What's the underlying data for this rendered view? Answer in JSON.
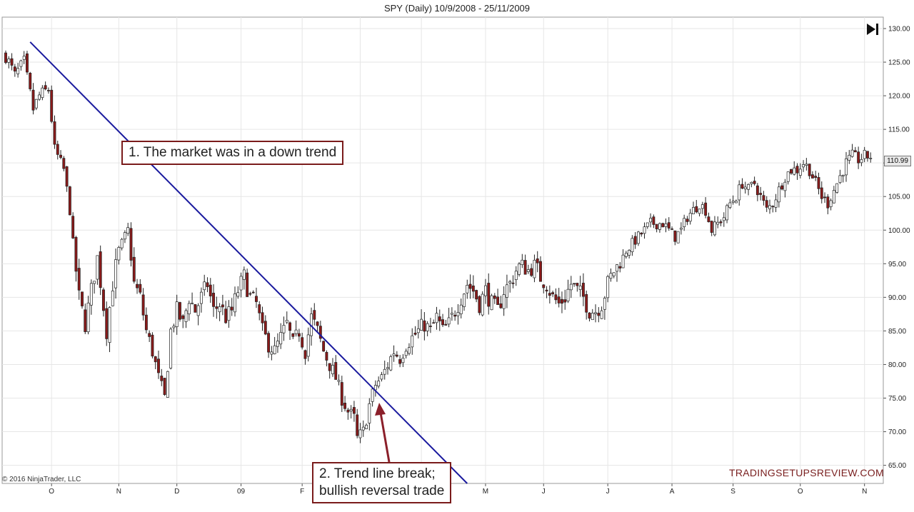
{
  "chart_data": {
    "type": "candlestick",
    "title": "SPY (Daily)  10/9/2008 - 25/11/2009",
    "y_ticks": [
      65,
      70,
      75,
      80,
      85,
      90,
      95,
      100,
      105,
      110,
      115,
      120,
      125,
      130
    ],
    "y_tick_labels": [
      "65.00",
      "70.00",
      "75.00",
      "80.00",
      "85.00",
      "90.00",
      "95.00",
      "100.00",
      "105.00",
      "110.00",
      "115.00",
      "120.00",
      "125.00",
      "130.00"
    ],
    "ylim": [
      62.3,
      131.7
    ],
    "x_months": [
      {
        "label": "O",
        "index": 15
      },
      {
        "label": "N",
        "index": 37
      },
      {
        "label": "D",
        "index": 56
      },
      {
        "label": "09",
        "index": 77
      },
      {
        "label": "F",
        "index": 97
      },
      {
        "label": "M",
        "index": 116
      },
      {
        "label": "A",
        "index": 136
      },
      {
        "label": "M",
        "index": 157
      },
      {
        "label": "J",
        "index": 176
      },
      {
        "label": "J",
        "index": 197
      },
      {
        "label": "A",
        "index": 218
      },
      {
        "label": "S",
        "index": 238
      },
      {
        "label": "O",
        "index": 260
      },
      {
        "label": "N",
        "index": 281
      }
    ],
    "close_path": [
      [
        0,
        126
      ],
      [
        3,
        123
      ],
      [
        6,
        125
      ],
      [
        9,
        118
      ],
      [
        11,
        120
      ],
      [
        14,
        121
      ],
      [
        16,
        112
      ],
      [
        19,
        109
      ],
      [
        21,
        103
      ],
      [
        22,
        98
      ],
      [
        24,
        90
      ],
      [
        26,
        86
      ],
      [
        28,
        91
      ],
      [
        30,
        96
      ],
      [
        33,
        85
      ],
      [
        35,
        92
      ],
      [
        37,
        97
      ],
      [
        40,
        100
      ],
      [
        42,
        92
      ],
      [
        44,
        90
      ],
      [
        46,
        85
      ],
      [
        48,
        82
      ],
      [
        50,
        78
      ],
      [
        52,
        75
      ],
      [
        54,
        85
      ],
      [
        56,
        88
      ],
      [
        58,
        86
      ],
      [
        60,
        90
      ],
      [
        62,
        88
      ],
      [
        64,
        90
      ],
      [
        66,
        92
      ],
      [
        68,
        88
      ],
      [
        70,
        89
      ],
      [
        72,
        87
      ],
      [
        74,
        88
      ],
      [
        76,
        91
      ],
      [
        78,
        93
      ],
      [
        80,
        90
      ],
      [
        82,
        89
      ],
      [
        84,
        85
      ],
      [
        86,
        83
      ],
      [
        88,
        82
      ],
      [
        90,
        84
      ],
      [
        92,
        86
      ],
      [
        94,
        83
      ],
      [
        96,
        85
      ],
      [
        98,
        82
      ],
      [
        100,
        87
      ],
      [
        102,
        85
      ],
      [
        104,
        82
      ],
      [
        106,
        80
      ],
      [
        108,
        78
      ],
      [
        110,
        75
      ],
      [
        112,
        73
      ],
      [
        114,
        72
      ],
      [
        115,
        69
      ],
      [
        117,
        70
      ],
      [
        119,
        74
      ],
      [
        121,
        77
      ],
      [
        123,
        78
      ],
      [
        125,
        80
      ],
      [
        127,
        82
      ],
      [
        129,
        81
      ],
      [
        131,
        83
      ],
      [
        133,
        84
      ],
      [
        135,
        85
      ],
      [
        137,
        86
      ],
      [
        139,
        85
      ],
      [
        141,
        87
      ],
      [
        143,
        85
      ],
      [
        145,
        86
      ],
      [
        147,
        88
      ],
      [
        149,
        90
      ],
      [
        151,
        92
      ],
      [
        153,
        91
      ],
      [
        155,
        89
      ],
      [
        157,
        91
      ],
      [
        159,
        89
      ],
      [
        161,
        88
      ],
      [
        163,
        91
      ],
      [
        165,
        92
      ],
      [
        167,
        94
      ],
      [
        169,
        95
      ],
      [
        171,
        94
      ],
      [
        173,
        95
      ],
      [
        175,
        93
      ],
      [
        177,
        92
      ],
      [
        179,
        90
      ],
      [
        181,
        89
      ],
      [
        183,
        90
      ],
      [
        185,
        92
      ],
      [
        187,
        91
      ],
      [
        189,
        90
      ],
      [
        191,
        88
      ],
      [
        193,
        88
      ],
      [
        195,
        89
      ],
      [
        197,
        92
      ],
      [
        199,
        94
      ],
      [
        201,
        95
      ],
      [
        203,
        97
      ],
      [
        205,
        98
      ],
      [
        207,
        99
      ],
      [
        209,
        100
      ],
      [
        211,
        101
      ],
      [
        213,
        101
      ],
      [
        215,
        101
      ],
      [
        217,
        100
      ],
      [
        219,
        99
      ],
      [
        221,
        100
      ],
      [
        223,
        102
      ],
      [
        225,
        103
      ],
      [
        227,
        104
      ],
      [
        229,
        103
      ],
      [
        231,
        100
      ],
      [
        233,
        101
      ],
      [
        235,
        102
      ],
      [
        237,
        104
      ],
      [
        239,
        105
      ],
      [
        241,
        107
      ],
      [
        243,
        106
      ],
      [
        245,
        107
      ],
      [
        247,
        105
      ],
      [
        249,
        103
      ],
      [
        251,
        104
      ],
      [
        253,
        106
      ],
      [
        255,
        108
      ],
      [
        257,
        109
      ],
      [
        259,
        109
      ],
      [
        261,
        110
      ],
      [
        263,
        109
      ],
      [
        265,
        107
      ],
      [
        267,
        105
      ],
      [
        269,
        104
      ],
      [
        271,
        106
      ],
      [
        273,
        108
      ],
      [
        275,
        110
      ],
      [
        277,
        111
      ],
      [
        279,
        110.5
      ],
      [
        281,
        111
      ],
      [
        283,
        110.99
      ]
    ],
    "last_price": "110.99",
    "trend_line": [
      [
        8,
        128
      ],
      [
        151,
        62.3
      ]
    ]
  },
  "annotations": {
    "a1": "1. The market was in a down trend",
    "a2_line1": "2. Trend line break;",
    "a2_line2": "bullish reversal trade"
  },
  "copyright": "© 2016 NinjaTrader, LLC",
  "watermark": "TRADINGSETUPSREVIEW.COM",
  "colors": {
    "trend_line": "#1a1a9e",
    "annotation_border": "#7a1b1b",
    "arrow": "#8b1f2a",
    "up_candle": "#ffffff",
    "down_candle": "#8b1a1a",
    "wick": "#222222",
    "grid": "#e6e6e6"
  },
  "icons": {
    "jump": "jump-to-end-icon"
  }
}
